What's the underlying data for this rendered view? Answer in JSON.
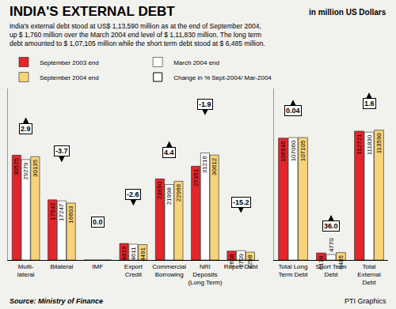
{
  "chart_data": [
    {
      "type": "bar",
      "title": "INDIA'S EXTERNAL DEBT",
      "subtitle": "in million US Dollars",
      "notes": [
        "India's external debt stood at US$ 1,13,590 million as at the end of September 2004,",
        "up $ 1,760 million over the March 2004 end level of $ 1,11,830 million. The long term",
        "debt amounted to $ 1,07,105 million while the short term debt stood at $ 6,485 million."
      ],
      "source": "Source: Ministry of Finance",
      "credit": "PTI Graphics",
      "categories": [
        "Multi-lateral",
        "Bilateral",
        "IMF",
        "Export Credit",
        "Commercial Borrowing",
        "NRI Deposits (Long Term)",
        "Rupee Debt"
      ],
      "series": [
        {
          "name": "September 2003 end",
          "color": "#e3262b",
          "values": [
            30575,
            17542,
            0,
            4819,
            23650,
            27351,
            2608
          ],
          "value_labels": [
            "30575",
            "17542",
            null,
            "4819",
            "23650",
            "27351",
            "2608"
          ]
        },
        {
          "name": "March 2004 end",
          "color": "#ffffff",
          "values": [
            29279,
            17247,
            0,
            4611,
            21998,
            31216,
            2709
          ],
          "value_labels": [
            "29279",
            "17247",
            null,
            "4611",
            "21998",
            "31216",
            "2709"
          ]
        },
        {
          "name": "September 2004 end",
          "color": "#f7d47a",
          "values": [
            30135,
            16603,
            0,
            4491,
            22966,
            30612,
            2298
          ],
          "value_labels": [
            "30135",
            "16603",
            null,
            "4491",
            "22966",
            "30612",
            "2298"
          ]
        }
      ],
      "change": {
        "name": "Change in % Sept-2004/ Mar-2004",
        "values": [
          2.9,
          -3.7,
          0.0,
          -2.6,
          4.4,
          -1.9,
          -15.2
        ],
        "value_labels": [
          "2.9",
          "-3.7",
          "0.0",
          "-2.6",
          "4.4",
          "-1.9",
          "-15.2"
        ]
      },
      "ylim": [
        0,
        50000
      ],
      "grid": false,
      "data_labels": true,
      "tick_labels": "x",
      "legend": "top"
    },
    {
      "type": "bar",
      "categories": [
        "Total Long Term Debt",
        "Short Term Debt",
        "Total External Debt"
      ],
      "series": [
        {
          "name": "September 2003 end",
          "color": "#e3262b",
          "values": [
            106545,
            6176,
            112721
          ],
          "value_labels": [
            "106545",
            "6176",
            "112721"
          ]
        },
        {
          "name": "March 2004 end",
          "color": "#ffffff",
          "values": [
            107060,
            4770,
            111830
          ],
          "value_labels": [
            "107060",
            "4770",
            "111830"
          ]
        },
        {
          "name": "September 2004 end",
          "color": "#f7d47a",
          "values": [
            107105,
            6485,
            113590
          ],
          "value_labels": [
            "107105",
            "6485",
            "113590"
          ]
        }
      ],
      "change": {
        "name": "Change in % Sept-2004/ Mar-2004",
        "values": [
          0.04,
          36.0,
          1.6
        ],
        "value_labels": [
          "0.04",
          "36.0",
          "1.6"
        ]
      },
      "ylim": [
        0,
        150000
      ],
      "grid": false,
      "data_labels": true,
      "tick_labels": "x"
    }
  ]
}
